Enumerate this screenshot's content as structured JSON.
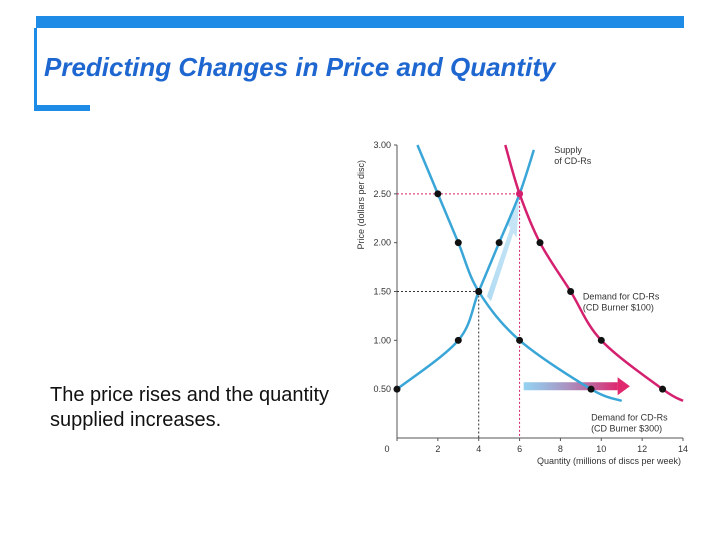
{
  "slide": {
    "title": "Predicting Changes in Price and Quantity",
    "caption": "The price rises and the quantity supplied increases."
  },
  "colors": {
    "frame": "#1e8be6",
    "title": "#1e66d0",
    "demand": "#3aa6d8",
    "supply": "#d4206f",
    "arrow_start": "#4fb5e8",
    "arrow_end": "#e0286e"
  },
  "chart_data": {
    "type": "line",
    "xlabel": "Quantity (millions of discs per week)",
    "ylabel": "Price (dollars per disc)",
    "xlim": [
      0,
      14
    ],
    "ylim": [
      0,
      3
    ],
    "xticks": [
      "0",
      "2",
      "4",
      "6",
      "8",
      "10",
      "12",
      "14"
    ],
    "yticks": [
      "0.50",
      "1.00",
      "1.50",
      "2.00",
      "2.50",
      "3.00"
    ],
    "series": [
      {
        "name": "Supply of CD-Rs",
        "label": [
          "Supply",
          "of CD-Rs"
        ],
        "color": "#3aa6d8",
        "points": [
          [
            0,
            0.5
          ],
          [
            3,
            1.0
          ],
          [
            4,
            1.5
          ],
          [
            5,
            2.0
          ],
          [
            6,
            2.5
          ]
        ]
      },
      {
        "name": "Demand for CD-Rs (CD Burner $100)",
        "label": [
          "Demand for CD-Rs",
          "(CD Burner $100)"
        ],
        "color": "#3aa6d8",
        "points": [
          [
            2,
            2.5
          ],
          [
            3,
            2.0
          ],
          [
            4,
            1.5
          ],
          [
            6,
            1.0
          ],
          [
            9.5,
            0.5
          ]
        ]
      },
      {
        "name": "Demand for CD-Rs (CD Burner $300)",
        "label": [
          "Demand for CD-Rs",
          "(CD Burner $300)"
        ],
        "color": "#d4206f",
        "points": [
          [
            6,
            2.5
          ],
          [
            7,
            2.0
          ],
          [
            8.5,
            1.5
          ],
          [
            10,
            1.0
          ],
          [
            13,
            0.5
          ]
        ]
      }
    ],
    "equilibria": [
      {
        "x": 4,
        "y": 1.5
      },
      {
        "x": 6,
        "y": 2.5
      }
    ]
  }
}
